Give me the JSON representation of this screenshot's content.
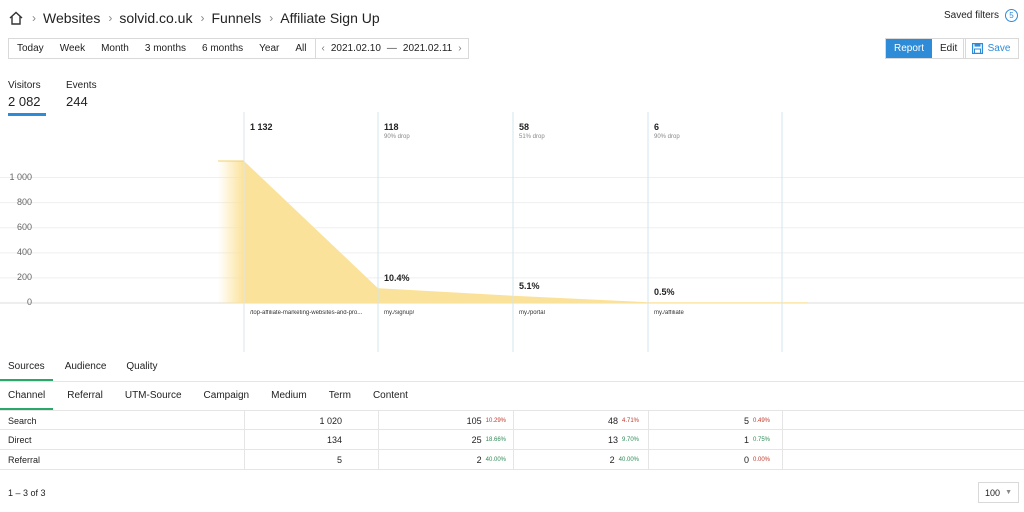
{
  "breadcrumb": {
    "home_icon": "home-icon",
    "items": [
      "Websites",
      "solvid.co.uk",
      "Funnels",
      "Affiliate Sign Up"
    ]
  },
  "saved_filters": {
    "label": "Saved filters",
    "count": "5"
  },
  "periods": [
    "Today",
    "Week",
    "Month",
    "3 months",
    "6 months",
    "Year",
    "All"
  ],
  "date_range": {
    "from": "2021.02.10",
    "to": "2021.02.11"
  },
  "modes": {
    "report": "Report",
    "edit": "Edit",
    "save": "Save"
  },
  "metrics": [
    {
      "label": "Visitors",
      "value": "2 082"
    },
    {
      "label": "Events",
      "value": "244"
    }
  ],
  "chart_data": {
    "type": "area",
    "y_ticks": [
      "1 000",
      "800",
      "600",
      "400",
      "200",
      "0"
    ],
    "ylim": [
      0,
      1132
    ],
    "steps": [
      {
        "count": "1 132",
        "value": 1132,
        "drop": "",
        "percent": "",
        "url": "/top-affiliate-marketing-websites-and-pro..."
      },
      {
        "count": "118",
        "value": 118,
        "drop": "90% drop",
        "percent": "10.4%",
        "url": "my./signup/"
      },
      {
        "count": "58",
        "value": 58,
        "drop": "51% drop",
        "percent": "5.1%",
        "url": "my./portal"
      },
      {
        "count": "6",
        "value": 6,
        "drop": "90% drop",
        "percent": "0.5%",
        "url": "my./affiliate"
      }
    ],
    "fill_color": "#fbe29a"
  },
  "tabs": [
    "Sources",
    "Audience",
    "Quality"
  ],
  "subtabs": [
    "Channel",
    "Referral",
    "UTM-Source",
    "Campaign",
    "Medium",
    "Term",
    "Content"
  ],
  "table": {
    "rows": [
      {
        "name": "Search",
        "total": "1 020",
        "steps": [
          {
            "v": "105",
            "p": "10.29%",
            "c": "red"
          },
          {
            "v": "48",
            "p": "4.71%",
            "c": "red"
          },
          {
            "v": "5",
            "p": "0.49%",
            "c": "red"
          }
        ]
      },
      {
        "name": "Direct",
        "total": "134",
        "steps": [
          {
            "v": "25",
            "p": "18.66%",
            "c": "green"
          },
          {
            "v": "13",
            "p": "9.70%",
            "c": "green"
          },
          {
            "v": "1",
            "p": "0.75%",
            "c": "green"
          }
        ]
      },
      {
        "name": "Referral",
        "total": "5",
        "steps": [
          {
            "v": "2",
            "p": "40.00%",
            "c": "green"
          },
          {
            "v": "2",
            "p": "40.00%",
            "c": "green"
          },
          {
            "v": "0",
            "p": "0.00%",
            "c": "red"
          }
        ]
      }
    ]
  },
  "pager": {
    "info": "1 – 3 of 3",
    "page_size": "100"
  }
}
